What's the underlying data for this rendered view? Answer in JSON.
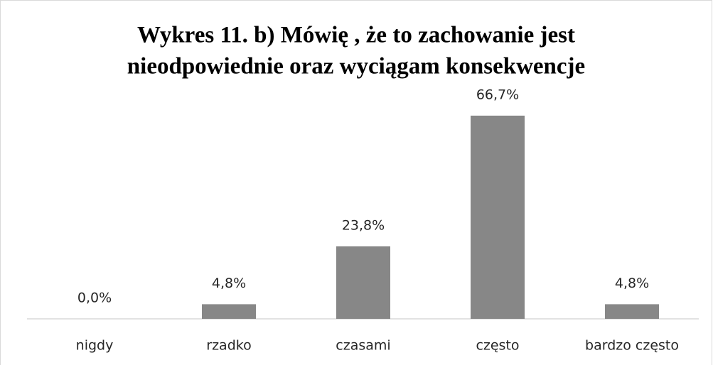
{
  "chart_data": {
    "type": "bar",
    "title": [
      "Wykres 11. b) Mówię , że to zachowanie jest",
      "nieodpowiednie oraz wyciągam konsekwencje"
    ],
    "categories": [
      "nigdy",
      "rzadko",
      "czasami",
      "często",
      "bardzo często"
    ],
    "values": [
      0.0,
      4.8,
      23.8,
      66.7,
      4.8
    ],
    "value_labels": [
      "0,0%",
      "4,8%",
      "23,8%",
      "66,7%",
      "4,8%"
    ],
    "color": "#878787"
  }
}
